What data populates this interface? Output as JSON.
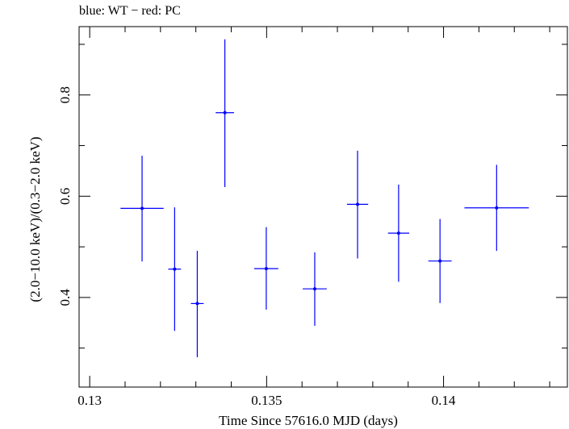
{
  "chart_data": {
    "type": "scatter",
    "title": "blue: WT − red: PC",
    "xlabel": "Time Since 57616.0 MJD (days)",
    "ylabel": "(2.0−10.0 keV)/(0.3−2.0 keV)",
    "xlim": [
      0.1297,
      0.1435
    ],
    "ylim": [
      0.223,
      0.935
    ],
    "x_ticks": [
      0.13,
      0.135,
      0.14
    ],
    "x_tick_labels": [
      "0.13",
      "0.135",
      "0.14"
    ],
    "y_ticks": [
      0.4,
      0.6,
      0.8
    ],
    "y_tick_labels": [
      "0.4",
      "0.6",
      "0.8"
    ],
    "grid": false,
    "series": [
      {
        "color": "#0000ff",
        "points": [
          {
            "x": 0.13148,
            "y": 0.576,
            "xerr": 0.00061,
            "yerr_low": 0.105,
            "yerr_high": 0.104
          },
          {
            "x": 0.1324,
            "y": 0.456,
            "xerr": 0.00018,
            "yerr_low": 0.122,
            "yerr_high": 0.122
          },
          {
            "x": 0.13304,
            "y": 0.388,
            "xerr": 0.00018,
            "yerr_low": 0.106,
            "yerr_high": 0.104
          },
          {
            "x": 0.13382,
            "y": 0.765,
            "xerr": 0.00026,
            "yerr_low": 0.147,
            "yerr_high": 0.145
          },
          {
            "x": 0.13499,
            "y": 0.457,
            "xerr": 0.00034,
            "yerr_low": 0.081,
            "yerr_high": 0.082
          },
          {
            "x": 0.13636,
            "y": 0.417,
            "xerr": 0.00034,
            "yerr_low": 0.073,
            "yerr_high": 0.072
          },
          {
            "x": 0.13757,
            "y": 0.584,
            "xerr": 0.0003,
            "yerr_low": 0.107,
            "yerr_high": 0.106
          },
          {
            "x": 0.13873,
            "y": 0.527,
            "xerr": 0.0003,
            "yerr_low": 0.096,
            "yerr_high": 0.096
          },
          {
            "x": 0.1399,
            "y": 0.472,
            "xerr": 0.00033,
            "yerr_low": 0.083,
            "yerr_high": 0.083
          },
          {
            "x": 0.1415,
            "y": 0.577,
            "xerr": 0.00091,
            "yerr_low": 0.085,
            "yerr_high": 0.085
          }
        ]
      }
    ]
  }
}
